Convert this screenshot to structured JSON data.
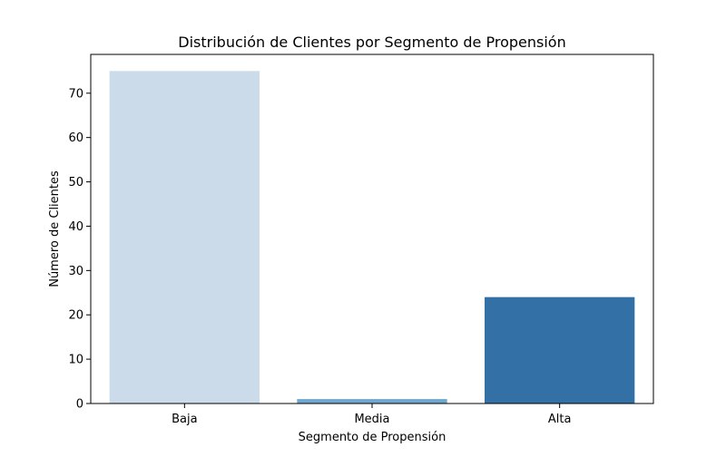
{
  "chart_data": {
    "type": "bar",
    "title": "Distribución de Clientes por Segmento de Propensión",
    "xlabel": "Segmento de Propensión",
    "ylabel": "Número de Clientes",
    "categories": [
      "Baja",
      "Media",
      "Alta"
    ],
    "values": [
      75,
      1,
      24
    ],
    "colors": [
      "#cbdbea",
      "#6ea6cd",
      "#3370a6"
    ],
    "ylim": [
      0,
      78.75
    ],
    "yticks": [
      0,
      10,
      20,
      30,
      40,
      50,
      60,
      70
    ],
    "grid": false,
    "legend": false
  }
}
